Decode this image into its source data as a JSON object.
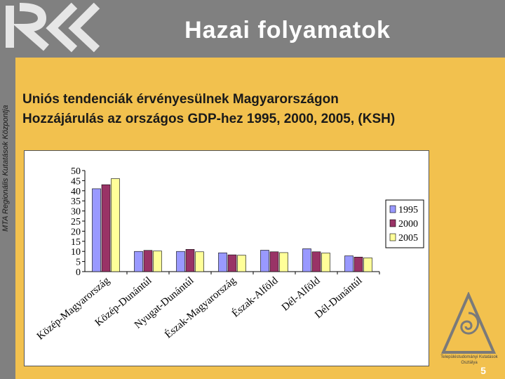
{
  "header": {
    "title": "Hazai folyamatok"
  },
  "sidebar": {
    "text": "MTA Regionális Kutatások Központja"
  },
  "subtitle": {
    "line1": "Uniós tendenciák érvényesülnek Magyarországon",
    "line2": "Hozzájárulás az országos GDP-hez 1995, 2000, 2005, (KSH)"
  },
  "institute": {
    "text": "Településtudományi Kutatások Osztálya"
  },
  "page": {
    "number": "5"
  },
  "colors": {
    "header": "#808080",
    "background": "#f2c14e",
    "s1995": "#9999ff",
    "s2000": "#993366",
    "s2005": "#ffff99"
  },
  "chart_data": {
    "type": "bar",
    "categories": [
      "Közép-Magyarország",
      "Közép-Dunántúl",
      "Nyugat-Dunántúl",
      "Észak-Magyarország",
      "Észak-Alföld",
      "Dél-Alföld",
      "Dél-Dunántúl"
    ],
    "series": [
      {
        "name": "1995",
        "color": "#9999ff",
        "values": [
          41,
          10,
          10,
          9.3,
          10.6,
          11.3,
          7.8
        ]
      },
      {
        "name": "2000",
        "color": "#993366",
        "values": [
          43,
          10.5,
          11,
          8.3,
          9.8,
          9.8,
          7.2
        ]
      },
      {
        "name": "2005",
        "color": "#ffff99",
        "values": [
          46,
          10.2,
          9.8,
          8.1,
          9.4,
          9.2,
          6.8
        ]
      }
    ],
    "ylim": [
      0,
      50
    ],
    "yticks": [
      "0",
      "5",
      "10",
      "15",
      "20",
      "25",
      "30",
      "35",
      "40",
      "45",
      "50"
    ],
    "legend": "right",
    "grid": false
  }
}
